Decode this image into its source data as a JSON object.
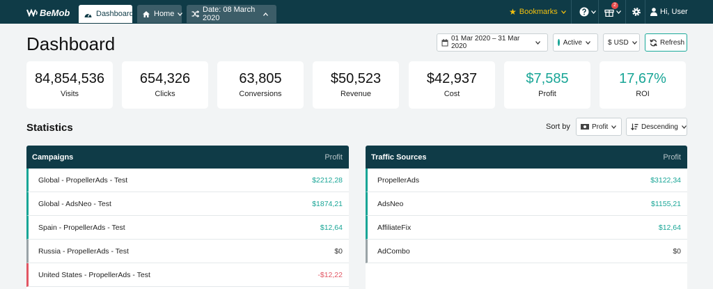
{
  "topbar": {
    "logo_text": "BeMob",
    "nav": {
      "dashboard": "Dashboard",
      "home": "Home",
      "date": "Date: 08 March 2020"
    },
    "bookmarks": "Bookmarks",
    "notification_count": "2",
    "user": "Hi, User"
  },
  "header": {
    "title": "Dashboard",
    "date_range": "01 Mar 2020 – 31 Mar 2020",
    "status_filter": "Active",
    "currency": "USD",
    "refresh": "Refresh"
  },
  "cards": [
    {
      "value": "84,854,536",
      "label": "Visits"
    },
    {
      "value": "654,326",
      "label": "Clicks"
    },
    {
      "value": "63,805",
      "label": "Conversions"
    },
    {
      "value": "$50,523",
      "label": "Revenue"
    },
    {
      "value": "$42,937",
      "label": "Cost"
    },
    {
      "value": "$7,585",
      "label": "Profit"
    },
    {
      "value": "17,67%",
      "label": "ROI"
    }
  ],
  "statistics": {
    "title": "Statistics",
    "sort_label": "Sort by",
    "sort_field": "Profit",
    "sort_order": "Descending"
  },
  "campaigns": {
    "header": "Campaigns",
    "metric": "Profit",
    "rows": [
      {
        "name": "Global - PropellerAds - Test",
        "profit": "$2212,28"
      },
      {
        "name": "Global - AdsNeo - Test",
        "profit": "$1874,21"
      },
      {
        "name": "Spain - PropellerAds - Test",
        "profit": "$12,64"
      },
      {
        "name": "Russia - PropellerAds - Test",
        "profit": "$0"
      },
      {
        "name": "United States - PropellerAds - Test",
        "profit": "-$12,22"
      }
    ]
  },
  "traffic_sources": {
    "header": "Traffic Sources",
    "metric": "Profit",
    "rows": [
      {
        "name": "PropellerAds",
        "profit": "$3122,34"
      },
      {
        "name": "AdsNeo",
        "profit": "$1155,21"
      },
      {
        "name": "AffiliateFix",
        "profit": "$12,64"
      },
      {
        "name": "AdCombo",
        "profit": "$0"
      }
    ]
  },
  "colors": {
    "topbar": "#0f3b47",
    "positive": "#18a596",
    "negative": "#e25563",
    "bookmark": "#f2c00f"
  }
}
